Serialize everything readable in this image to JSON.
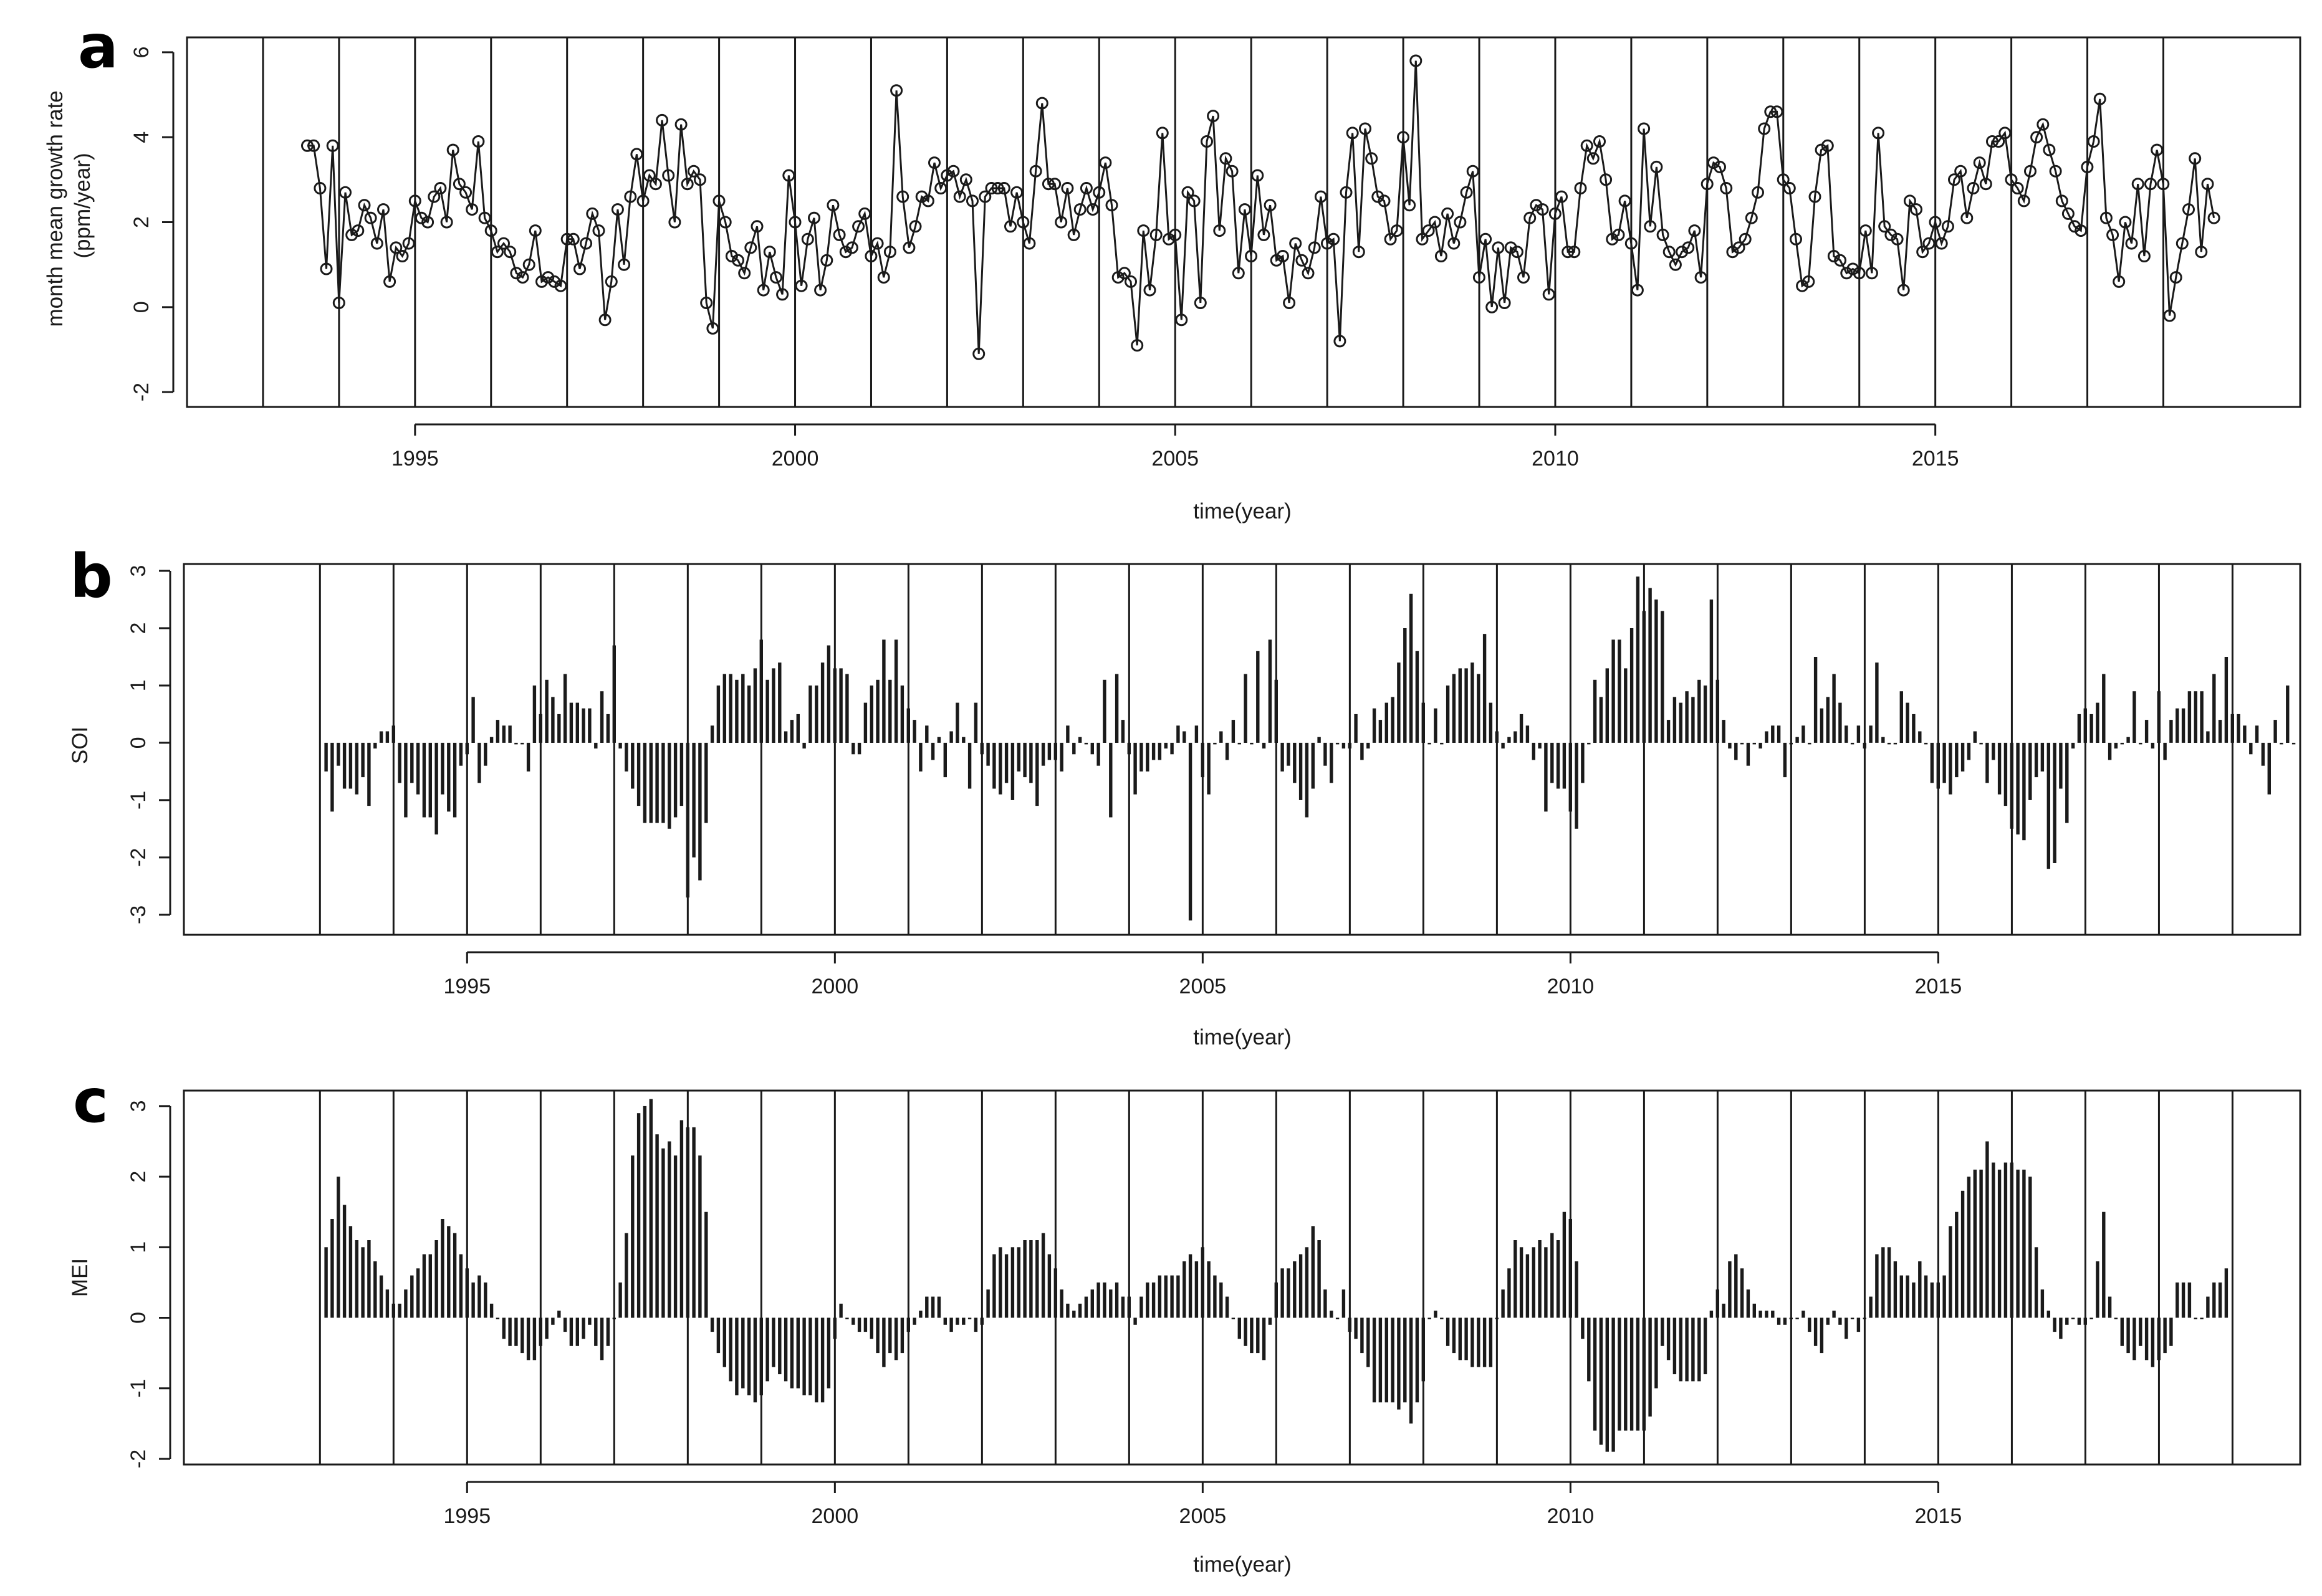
{
  "chart_data": [
    {
      "type": "line",
      "panel_letter": "a",
      "xlabel": "time(year)",
      "ylabel": [
        "month mean growth rate",
        "(ppm/year)"
      ],
      "xlim": [
        1992.0,
        2019.8
      ],
      "ylim": [
        -2.35,
        6.35
      ],
      "x_ticks": [
        1995,
        2000,
        2005,
        2010,
        2015
      ],
      "y_ticks": [
        -2,
        0,
        2,
        4,
        6
      ],
      "year_lines": [
        1993,
        1994,
        1995,
        1996,
        1997,
        1998,
        1999,
        2000,
        2001,
        2002,
        2003,
        2004,
        2005,
        2006,
        2007,
        2008,
        2009,
        2010,
        2011,
        2012,
        2013,
        2014,
        2015,
        2016,
        2017,
        2018
      ],
      "x_start": 1993.583,
      "x_step": 0.08333,
      "values": [
        3.8,
        3.8,
        2.8,
        0.9,
        3.8,
        0.1,
        2.7,
        1.7,
        1.8,
        2.4,
        2.1,
        1.5,
        2.3,
        0.6,
        1.4,
        1.2,
        1.5,
        2.5,
        2.1,
        2.0,
        2.6,
        2.8,
        2.0,
        3.7,
        2.9,
        2.7,
        2.3,
        3.9,
        2.1,
        1.8,
        1.3,
        1.5,
        1.3,
        0.8,
        0.7,
        1.0,
        1.8,
        0.6,
        0.7,
        0.6,
        0.5,
        1.6,
        1.6,
        0.9,
        1.5,
        2.2,
        1.8,
        -0.3,
        0.6,
        2.3,
        1.0,
        2.6,
        3.6,
        2.5,
        3.1,
        2.9,
        4.4,
        3.1,
        2.0,
        4.3,
        2.9,
        3.2,
        3.0,
        0.1,
        -0.5,
        2.5,
        2.0,
        1.2,
        1.1,
        0.8,
        1.4,
        1.9,
        0.4,
        1.3,
        0.7,
        0.3,
        3.1,
        2.0,
        0.5,
        1.6,
        2.1,
        0.4,
        1.1,
        2.4,
        1.7,
        1.3,
        1.4,
        1.9,
        2.2,
        1.2,
        1.5,
        0.7,
        1.3,
        5.1,
        2.6,
        1.4,
        1.9,
        2.6,
        2.5,
        3.4,
        2.8,
        3.1,
        3.2,
        2.6,
        3.0,
        2.5,
        -1.1,
        2.6,
        2.8,
        2.8,
        2.8,
        1.9,
        2.7,
        2.0,
        1.5,
        3.2,
        4.8,
        2.9,
        2.9,
        2.0,
        2.8,
        1.7,
        2.3,
        2.8,
        2.3,
        2.7,
        3.4,
        2.4,
        0.7,
        0.8,
        0.6,
        -0.9,
        1.8,
        0.4,
        1.7,
        4.1,
        1.6,
        1.7,
        -0.3,
        2.7,
        2.5,
        0.1,
        3.9,
        4.5,
        1.8,
        3.5,
        3.2,
        0.8,
        2.3,
        1.2,
        3.1,
        1.7,
        2.4,
        1.1,
        1.2,
        0.1,
        1.5,
        1.1,
        0.8,
        1.4,
        2.6,
        1.5,
        1.6,
        -0.8,
        2.7,
        4.1,
        1.3,
        4.2,
        3.5,
        2.6,
        2.5,
        1.6,
        1.8,
        4.0,
        2.4,
        5.8,
        1.6,
        1.8,
        2.0,
        1.2,
        2.2,
        1.5,
        2.0,
        2.7,
        3.2,
        0.7,
        1.6,
        0.0,
        1.4,
        0.1,
        1.4,
        1.3,
        0.7,
        2.1,
        2.4,
        2.3,
        0.3,
        2.2,
        2.6,
        1.3,
        1.3,
        2.8,
        3.8,
        3.5,
        3.9,
        3.0,
        1.6,
        1.7,
        2.5,
        1.5,
        0.4,
        4.2,
        1.9,
        3.3,
        1.7,
        1.3,
        1.0,
        1.3,
        1.4,
        1.8,
        0.7,
        2.9,
        3.4,
        3.3,
        2.8,
        1.3,
        1.4,
        1.6,
        2.1,
        2.7,
        4.2,
        4.6,
        4.6,
        3.0,
        2.8,
        1.6,
        0.5,
        0.6,
        2.6,
        3.7,
        3.8,
        1.2,
        1.1,
        0.8,
        0.9,
        0.8,
        1.8,
        0.8,
        4.1,
        1.9,
        1.7,
        1.6,
        0.4,
        2.5,
        2.3,
        1.3,
        1.5,
        2.0,
        1.5,
        1.9,
        3.0,
        3.2,
        2.1,
        2.8,
        3.4,
        2.9,
        3.9,
        3.9,
        4.1,
        3.0,
        2.8,
        2.5,
        3.2,
        4.0,
        4.3,
        3.7,
        3.2,
        2.5,
        2.2,
        1.9,
        1.8,
        3.3,
        3.9,
        4.9,
        2.1,
        1.7,
        0.6,
        2.0,
        1.5,
        2.9,
        1.2,
        2.9,
        3.7,
        2.9,
        -0.2,
        0.7,
        1.5,
        2.3,
        3.5,
        1.3,
        2.9,
        2.1
      ]
    },
    {
      "type": "bar",
      "panel_letter": "b",
      "xlabel": "time(year)",
      "ylabel": "SOI",
      "xlim": [
        1991.15,
        2019.92
      ],
      "ylim": [
        -3.35,
        3.12
      ],
      "x_ticks": [
        1995,
        2000,
        2005,
        2010,
        2015
      ],
      "y_ticks": [
        -3,
        -2,
        -1,
        0,
        1,
        2,
        3
      ],
      "year_lines": [
        1993,
        1994,
        1995,
        1996,
        1997,
        1998,
        1999,
        2000,
        2001,
        2002,
        2003,
        2004,
        2005,
        2006,
        2007,
        2008,
        2009,
        2010,
        2011,
        2012,
        2013,
        2014,
        2015,
        2016,
        2017,
        2018,
        2019
      ],
      "x_start": 1993.083,
      "x_step": 0.08333,
      "values": [
        -0.5,
        -1.2,
        -0.4,
        -0.8,
        -0.8,
        -0.9,
        -0.6,
        -1.1,
        -0.1,
        0.2,
        0.2,
        0.3,
        -0.7,
        -1.3,
        -0.7,
        -0.9,
        -1.3,
        -1.3,
        -1.6,
        -0.9,
        -1.2,
        -1.3,
        -0.4,
        -0.2,
        0.8,
        -0.7,
        -0.4,
        0.1,
        0.4,
        0.3,
        0.3,
        0.0,
        0.0,
        -0.5,
        1.0,
        0.5,
        1.1,
        0.8,
        0.5,
        1.2,
        0.7,
        0.7,
        0.6,
        0.6,
        -0.1,
        0.9,
        0.5,
        1.7,
        -0.1,
        -0.5,
        -0.8,
        -1.1,
        -1.4,
        -1.4,
        -1.4,
        -1.4,
        -1.5,
        -1.3,
        -1.1,
        -2.7,
        -2.0,
        -2.4,
        -1.4,
        0.3,
        1.0,
        1.2,
        1.2,
        1.1,
        1.2,
        1.0,
        1.3,
        1.8,
        1.1,
        1.3,
        1.4,
        0.2,
        0.4,
        0.5,
        -0.1,
        1.0,
        1.0,
        1.4,
        1.7,
        1.3,
        1.3,
        1.2,
        -0.2,
        -0.2,
        0.7,
        1.0,
        1.1,
        1.8,
        1.1,
        1.8,
        1.0,
        0.6,
        0.4,
        -0.5,
        0.3,
        -0.3,
        0.1,
        -0.6,
        0.2,
        0.7,
        0.1,
        -0.8,
        0.7,
        -0.2,
        -0.4,
        -0.8,
        -0.9,
        -0.7,
        -1.0,
        -0.5,
        -0.6,
        -0.7,
        -1.1,
        -0.4,
        -0.3,
        -0.3,
        -0.5,
        0.3,
        -0.2,
        0.1,
        0.0,
        -0.2,
        -0.4,
        1.1,
        -1.3,
        1.2,
        0.4,
        -0.2,
        -0.9,
        -0.5,
        -0.5,
        -0.3,
        -0.3,
        -0.1,
        -0.2,
        0.3,
        0.2,
        -3.1,
        0.3,
        -0.6,
        -0.9,
        0.0,
        0.2,
        -0.3,
        0.4,
        0.0,
        1.2,
        0.0,
        1.6,
        -0.1,
        1.8,
        1.1,
        -0.5,
        -0.4,
        -0.7,
        -1.0,
        -1.3,
        -0.8,
        0.1,
        -0.4,
        -0.7,
        0.0,
        -0.1,
        -0.1,
        0.5,
        -0.3,
        -0.1,
        0.6,
        0.4,
        0.7,
        0.8,
        1.4,
        2.0,
        2.6,
        1.6,
        0.7,
        0.0,
        0.6,
        0.0,
        1.0,
        1.2,
        1.3,
        1.3,
        1.4,
        1.2,
        1.9,
        0.7,
        0.2,
        -0.1,
        0.1,
        0.2,
        0.5,
        0.3,
        -0.3,
        -0.1,
        -1.2,
        -0.7,
        -0.8,
        -0.8,
        -1.2,
        -1.5,
        -0.7,
        0.0,
        1.1,
        0.8,
        1.3,
        1.8,
        1.8,
        1.3,
        2.0,
        2.9,
        2.3,
        2.7,
        2.5,
        2.3,
        0.4,
        0.8,
        0.7,
        0.9,
        0.8,
        1.1,
        1.0,
        2.5,
        1.1,
        0.4,
        -0.1,
        -0.3,
        0.0,
        -0.4,
        0.0,
        -0.1,
        0.2,
        0.3,
        0.3,
        -0.6,
        0.0,
        0.1,
        0.3,
        0.0,
        1.5,
        0.6,
        0.8,
        1.2,
        0.7,
        0.3,
        0.0,
        0.3,
        -0.1,
        0.3,
        1.4,
        0.1,
        0.0,
        0.0,
        0.9,
        0.7,
        0.5,
        0.2,
        0.0,
        -0.7,
        -0.8,
        -0.7,
        -0.9,
        -0.6,
        -0.5,
        -0.3,
        0.2,
        0.0,
        -0.7,
        -0.3,
        -0.9,
        -1.1,
        -1.5,
        -1.6,
        -1.7,
        -1.0,
        -0.6,
        -0.5,
        -2.2,
        -2.1,
        -0.8,
        -1.4,
        -0.1,
        0.5,
        0.6,
        0.5,
        0.7,
        1.2,
        -0.3,
        -0.1,
        0.0,
        0.1,
        0.9,
        0.0,
        0.4,
        -0.1,
        0.9,
        -0.3,
        0.4,
        0.6,
        0.6,
        0.9,
        0.9,
        0.9,
        0.2,
        1.2,
        0.4,
        1.5,
        0.5,
        0.5,
        0.3,
        -0.2,
        0.3,
        -0.4,
        -0.9,
        0.4,
        0.0,
        1.0,
        0.0
      ]
    },
    {
      "type": "bar",
      "panel_letter": "c",
      "xlabel": "time(year)",
      "ylabel": "MEI",
      "xlim": [
        1991.15,
        2019.92
      ],
      "ylim": [
        -2.08,
        3.22
      ],
      "x_ticks": [
        1995,
        2000,
        2005,
        2010,
        2015
      ],
      "y_ticks": [
        -2,
        -1,
        0,
        1,
        2,
        3
      ],
      "year_lines": [
        1993,
        1994,
        1995,
        1996,
        1997,
        1998,
        1999,
        2000,
        2001,
        2002,
        2003,
        2004,
        2005,
        2006,
        2007,
        2008,
        2009,
        2010,
        2011,
        2012,
        2013,
        2014,
        2015,
        2016,
        2017,
        2018,
        2019
      ],
      "x_start": 1993.083,
      "x_step": 0.08333,
      "values": [
        1.0,
        1.4,
        2.0,
        1.6,
        1.3,
        1.1,
        1.0,
        1.1,
        0.8,
        0.6,
        0.4,
        0.2,
        0.2,
        0.4,
        0.6,
        0.7,
        0.9,
        0.9,
        1.1,
        1.4,
        1.3,
        1.2,
        0.9,
        0.7,
        0.5,
        0.6,
        0.5,
        0.2,
        0.0,
        -0.3,
        -0.4,
        -0.4,
        -0.5,
        -0.6,
        -0.6,
        -0.4,
        -0.3,
        -0.1,
        0.1,
        -0.2,
        -0.4,
        -0.4,
        -0.3,
        -0.1,
        -0.4,
        -0.6,
        -0.4,
        0.0,
        0.5,
        1.2,
        2.3,
        2.9,
        3.0,
        3.1,
        2.6,
        2.4,
        2.5,
        2.3,
        2.8,
        2.7,
        2.7,
        2.3,
        1.5,
        -0.2,
        -0.5,
        -0.7,
        -0.9,
        -1.1,
        -1.0,
        -1.1,
        -1.2,
        -1.1,
        -0.9,
        -0.7,
        -0.8,
        -0.9,
        -1.0,
        -1.0,
        -1.1,
        -1.1,
        -1.2,
        -1.2,
        -1.0,
        -0.3,
        0.2,
        0.0,
        -0.1,
        -0.2,
        -0.2,
        -0.3,
        -0.5,
        -0.7,
        -0.5,
        -0.6,
        -0.5,
        -0.2,
        -0.1,
        0.1,
        0.3,
        0.3,
        0.3,
        -0.1,
        -0.2,
        -0.1,
        -0.1,
        0.0,
        -0.2,
        -0.1,
        0.4,
        0.9,
        1.0,
        0.9,
        1.0,
        1.0,
        1.1,
        1.1,
        1.1,
        1.2,
        0.9,
        0.7,
        0.4,
        0.2,
        0.1,
        0.2,
        0.3,
        0.4,
        0.5,
        0.5,
        0.4,
        0.5,
        0.3,
        0.3,
        -0.1,
        0.3,
        0.5,
        0.5,
        0.6,
        0.6,
        0.6,
        0.6,
        0.8,
        0.9,
        0.8,
        1.0,
        0.8,
        0.6,
        0.5,
        0.3,
        0.0,
        -0.3,
        -0.4,
        -0.5,
        -0.5,
        -0.6,
        -0.1,
        0.5,
        0.7,
        0.7,
        0.8,
        0.9,
        1.0,
        1.3,
        1.1,
        0.4,
        0.1,
        0.0,
        0.4,
        -0.2,
        -0.3,
        -0.5,
        -0.7,
        -1.2,
        -1.2,
        -1.2,
        -1.2,
        -1.3,
        -1.2,
        -1.5,
        -1.2,
        -0.9,
        0.0,
        0.1,
        0.0,
        -0.4,
        -0.5,
        -0.6,
        -0.6,
        -0.7,
        -0.7,
        -0.7,
        -0.7,
        0.0,
        0.4,
        0.7,
        1.1,
        1.0,
        0.9,
        1.0,
        1.1,
        1.0,
        1.2,
        1.1,
        1.5,
        1.4,
        0.8,
        -0.3,
        -0.9,
        -1.6,
        -1.8,
        -1.9,
        -1.9,
        -1.6,
        -1.6,
        -1.6,
        -1.6,
        -1.6,
        -1.4,
        -1.0,
        -0.4,
        -0.6,
        -0.8,
        -0.9,
        -0.9,
        -0.9,
        -0.9,
        -0.8,
        0.1,
        0.4,
        0.2,
        0.8,
        0.9,
        0.7,
        0.4,
        0.2,
        0.1,
        0.1,
        0.1,
        -0.1,
        -0.1,
        0.0,
        0.0,
        0.1,
        -0.2,
        -0.4,
        -0.5,
        -0.1,
        0.1,
        -0.1,
        -0.3,
        0.0,
        -0.2,
        0.0,
        0.3,
        0.9,
        1.0,
        1.0,
        0.8,
        0.6,
        0.6,
        0.5,
        0.8,
        0.6,
        0.5,
        0.5,
        0.6,
        1.3,
        1.5,
        1.8,
        2.0,
        2.1,
        2.1,
        2.5,
        2.2,
        2.1,
        2.2,
        2.2,
        2.1,
        2.1,
        2.0,
        1.0,
        0.4,
        0.1,
        -0.2,
        -0.3,
        -0.1,
        0.0,
        -0.1,
        -0.1,
        0.0,
        0.8,
        1.5,
        0.3,
        0.0,
        -0.4,
        -0.5,
        -0.6,
        -0.4,
        -0.6,
        -0.7,
        -0.6,
        -0.5,
        -0.4,
        0.5,
        0.5,
        0.5,
        0.0,
        0.0,
        0.3,
        0.5,
        0.5,
        0.7
      ]
    }
  ]
}
